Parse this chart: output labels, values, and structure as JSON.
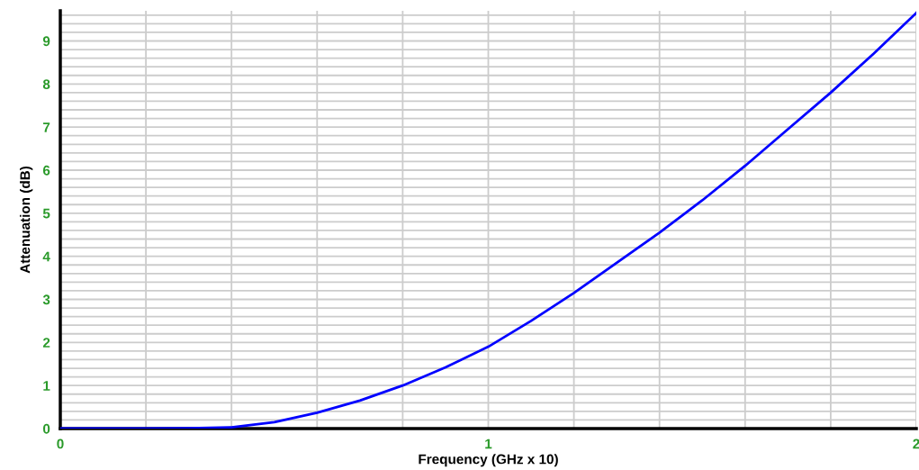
{
  "chart_data": {
    "type": "line",
    "xlabel": "Frequency (GHz x 10)",
    "ylabel": "Attenuation (dB)",
    "x": [
      0,
      0.1,
      0.2,
      0.3,
      0.4,
      0.5,
      0.6,
      0.7,
      0.8,
      0.9,
      1.0,
      1.1,
      1.2,
      1.3,
      1.4,
      1.5,
      1.6,
      1.7,
      1.8,
      1.9,
      2.0
    ],
    "series": [
      {
        "color": "#0000ff",
        "values": [
          0,
          0,
          0,
          0.01,
          0.03,
          0.15,
          0.37,
          0.65,
          1.0,
          1.42,
          1.9,
          2.5,
          3.15,
          3.85,
          4.55,
          5.3,
          6.1,
          6.95,
          7.8,
          8.7,
          9.65
        ]
      }
    ],
    "xlim": [
      0,
      2
    ],
    "ylim": [
      0,
      9.7
    ],
    "xticks": [
      0,
      {
        "value": 0.2,
        "label": null
      },
      {
        "value": 0.4,
        "label": null
      },
      {
        "value": 0.6,
        "label": null
      },
      {
        "value": 0.8,
        "label": null
      },
      1,
      {
        "value": 1.2,
        "label": null
      },
      {
        "value": 1.4,
        "label": null
      },
      {
        "value": 1.6,
        "label": null
      },
      {
        "value": 1.8,
        "label": null
      },
      2
    ],
    "yticks": [
      0,
      {
        "value": 0.2,
        "label": null
      },
      {
        "value": 0.4,
        "label": null
      },
      {
        "value": 0.6,
        "label": null
      },
      {
        "value": 0.8,
        "label": null
      },
      1,
      {
        "value": 1.2,
        "label": null
      },
      {
        "value": 1.4,
        "label": null
      },
      {
        "value": 1.6,
        "label": null
      },
      {
        "value": 1.8,
        "label": null
      },
      2,
      {
        "value": 2.2,
        "label": null
      },
      {
        "value": 2.4,
        "label": null
      },
      {
        "value": 2.6,
        "label": null
      },
      {
        "value": 2.8,
        "label": null
      },
      3,
      {
        "value": 3.2,
        "label": null
      },
      {
        "value": 3.4,
        "label": null
      },
      {
        "value": 3.6,
        "label": null
      },
      {
        "value": 3.8,
        "label": null
      },
      4,
      {
        "value": 4.2,
        "label": null
      },
      {
        "value": 4.4,
        "label": null
      },
      {
        "value": 4.6,
        "label": null
      },
      {
        "value": 4.8,
        "label": null
      },
      5,
      {
        "value": 5.2,
        "label": null
      },
      {
        "value": 5.4,
        "label": null
      },
      {
        "value": 5.6,
        "label": null
      },
      {
        "value": 5.8,
        "label": null
      },
      6,
      {
        "value": 6.2,
        "label": null
      },
      {
        "value": 6.4,
        "label": null
      },
      {
        "value": 6.6,
        "label": null
      },
      {
        "value": 6.8,
        "label": null
      },
      7,
      {
        "value": 7.2,
        "label": null
      },
      {
        "value": 7.4,
        "label": null
      },
      {
        "value": 7.6,
        "label": null
      },
      {
        "value": 7.8,
        "label": null
      },
      8,
      {
        "value": 8.2,
        "label": null
      },
      {
        "value": 8.4,
        "label": null
      },
      {
        "value": 8.6,
        "label": null
      },
      {
        "value": 8.8,
        "label": null
      },
      9,
      {
        "value": 9.2,
        "label": null
      },
      {
        "value": 9.4,
        "label": null
      },
      {
        "value": 9.6,
        "label": null
      }
    ],
    "grid": true,
    "line_style": "solid",
    "marker": "none"
  }
}
